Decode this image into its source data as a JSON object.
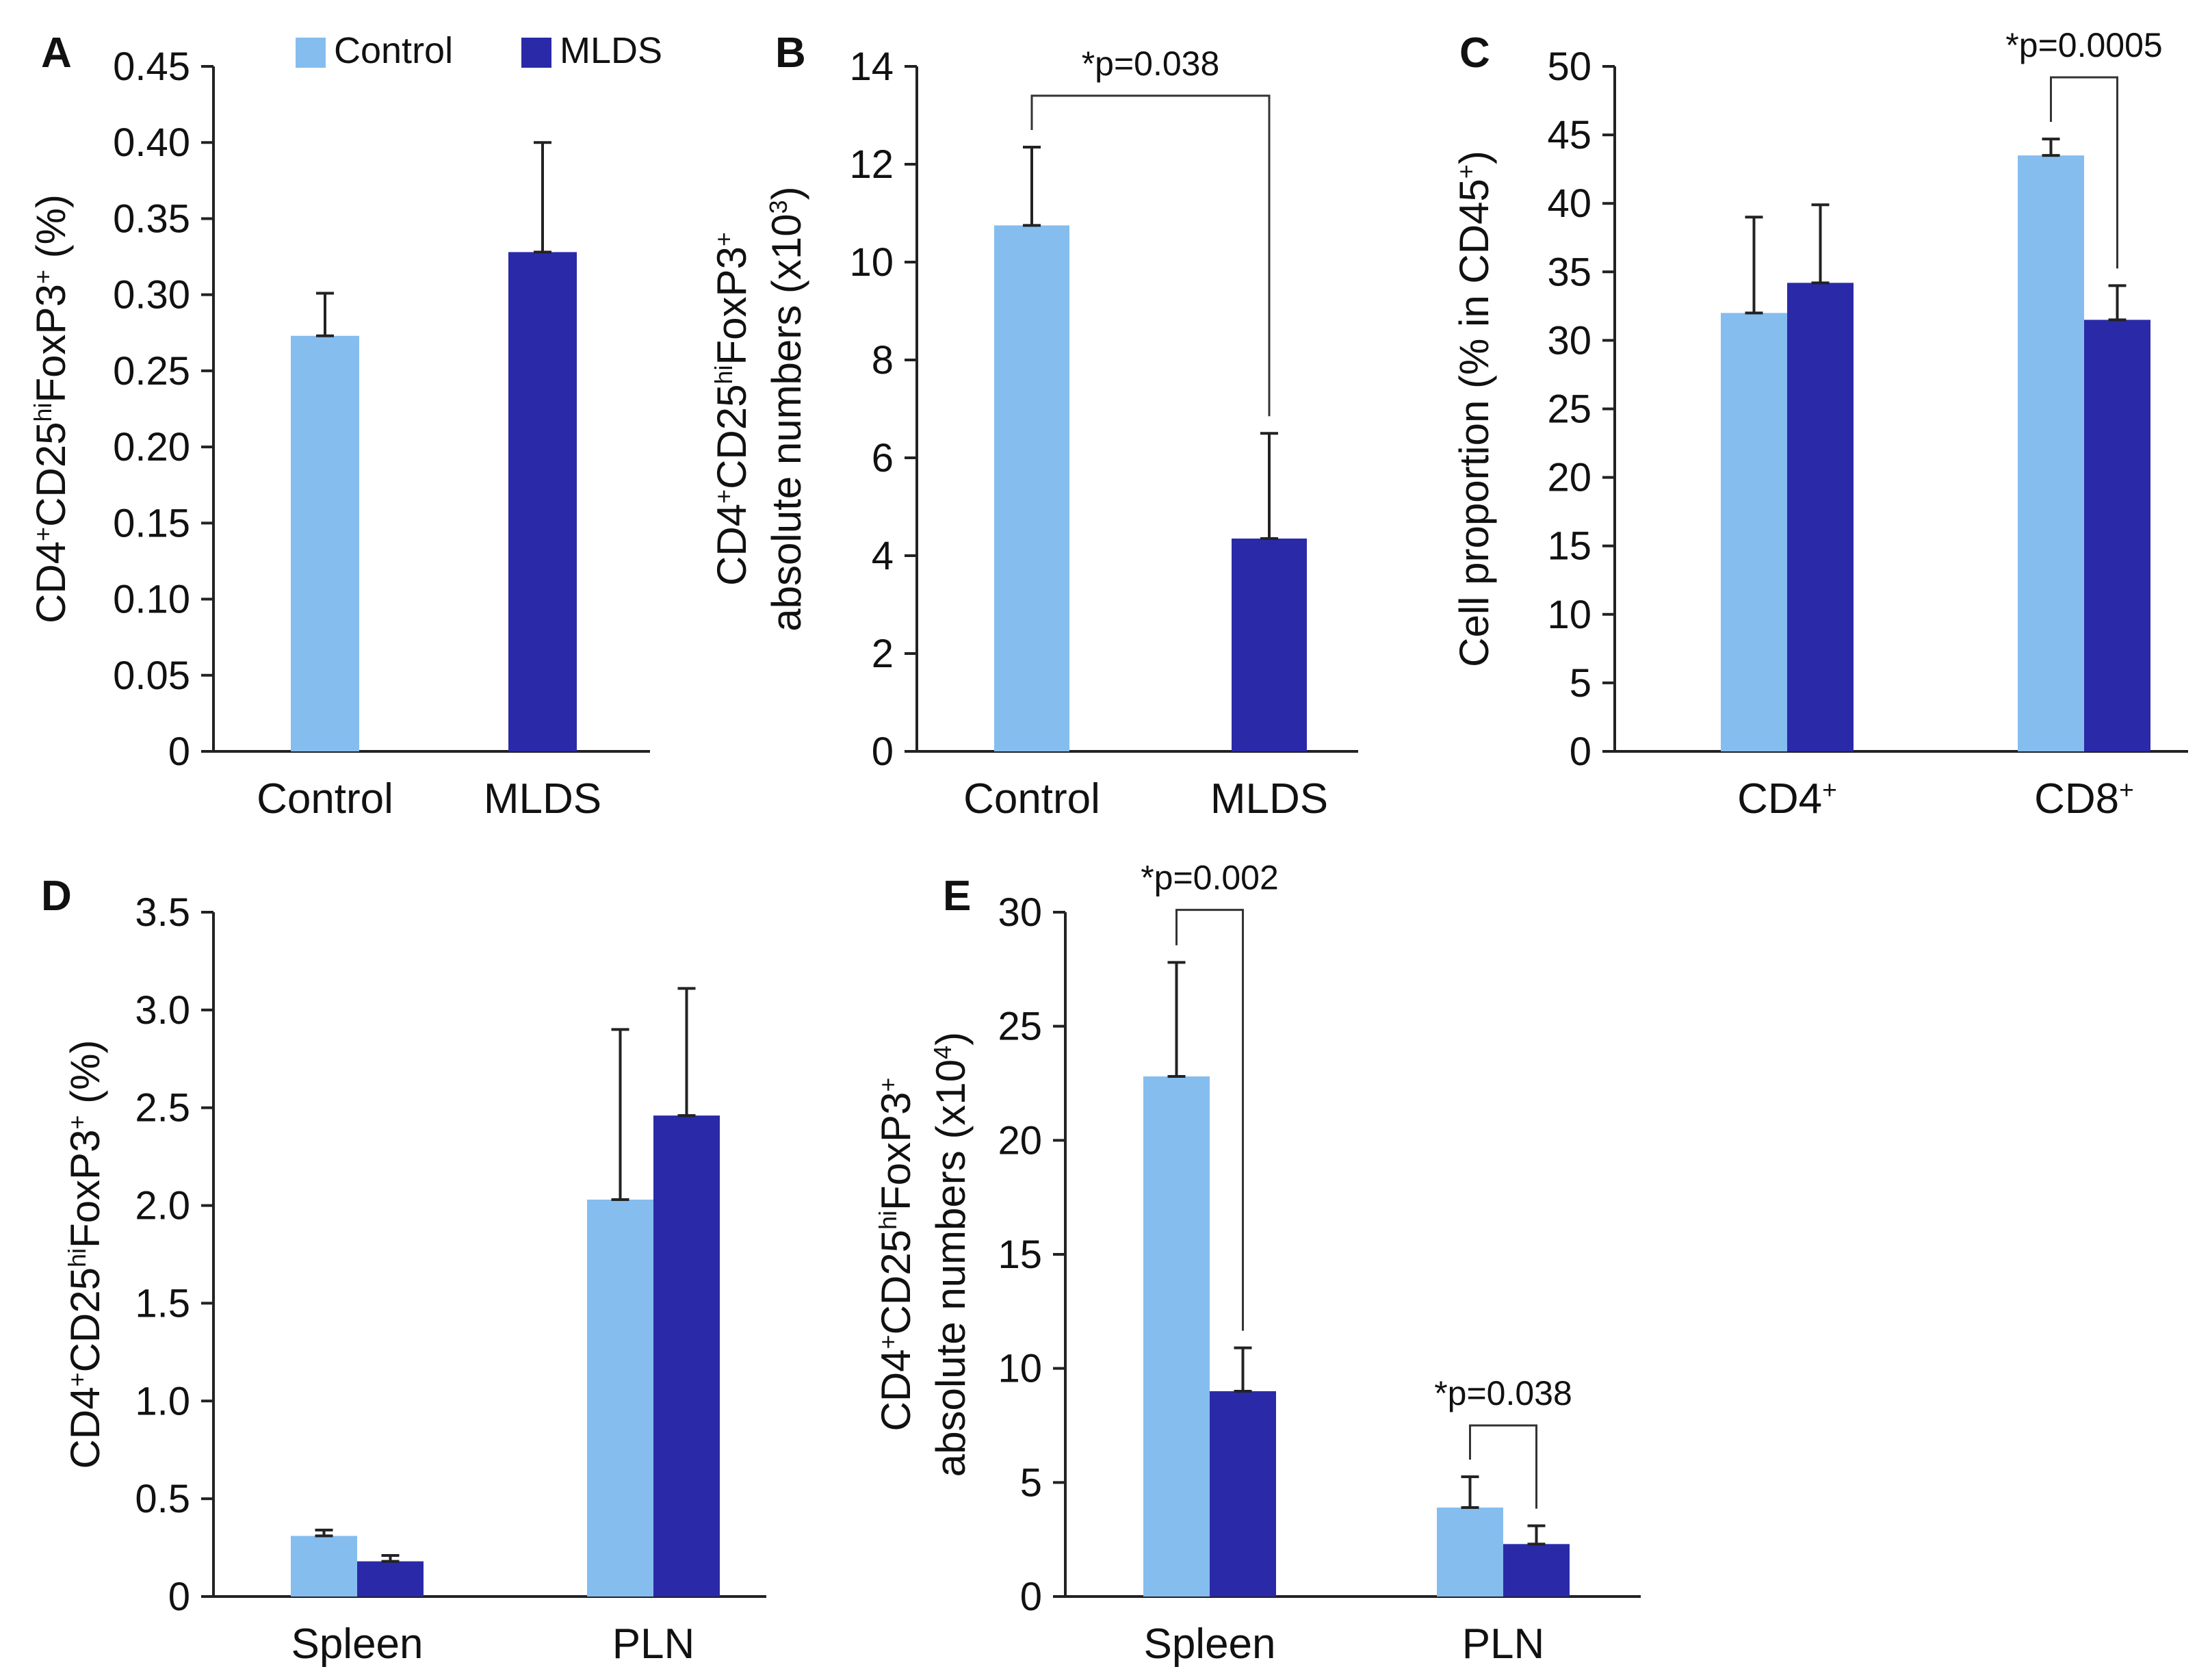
{
  "figure": {
    "legend": {
      "items": [
        {
          "label": "Control",
          "color": "#85bdef"
        },
        {
          "label": "MLDS",
          "color": "#2a2aa8"
        }
      ]
    }
  },
  "chart_data": [
    {
      "panel": "A",
      "type": "bar",
      "categories": [
        "Control",
        "MLDS"
      ],
      "series": [
        {
          "name": "Control",
          "color": "#85bdef",
          "values": [
            0.273,
            null
          ],
          "errors": [
            0.028,
            null
          ]
        },
        {
          "name": "MLDS",
          "color": "#2a2aa8",
          "values": [
            null,
            0.328
          ],
          "errors": [
            null,
            0.072
          ]
        }
      ],
      "ylabel": {
        "main": "CD4",
        "parts": [
          [
            "CD4",
            "+"
          ],
          [
            "CD25",
            "hi"
          ],
          [
            "FoxP3",
            "+"
          ]
        ],
        "suffix": " (%)"
      },
      "ylabel_lines": [
        [
          [
            "CD4",
            "+"
          ],
          [
            "CD25",
            "hi"
          ],
          [
            "FoxP3",
            "+"
          ],
          [
            " (%)",
            ""
          ]
        ]
      ],
      "ylim": [
        0,
        0.45
      ],
      "yticks": [
        "0",
        "0.05",
        "0.10",
        "0.15",
        "0.20",
        "0.25",
        "0.30",
        "0.35",
        "0.40",
        "0.45"
      ],
      "significance": []
    },
    {
      "panel": "B",
      "type": "bar",
      "categories": [
        "Control",
        "MLDS"
      ],
      "series": [
        {
          "name": "Control",
          "color": "#85bdef",
          "values": [
            10.75,
            null
          ],
          "errors": [
            1.6,
            null
          ]
        },
        {
          "name": "MLDS",
          "color": "#2a2aa8",
          "values": [
            null,
            4.35
          ],
          "errors": [
            null,
            2.15
          ]
        }
      ],
      "ylabel_lines": [
        [
          [
            "CD4",
            "+"
          ],
          [
            "CD25",
            "hi"
          ],
          [
            "FoxP3",
            "+"
          ]
        ],
        [
          [
            "absolute numbers (x10",
            "3"
          ],
          [
            ")",
            ""
          ]
        ]
      ],
      "ylim": [
        0,
        14
      ],
      "yticks": [
        "0",
        "2",
        "4",
        "6",
        "8",
        "10",
        "12",
        "14"
      ],
      "significance": [
        {
          "label": "*p=0.038",
          "from_bar": 0,
          "to_bar": 1,
          "y": 13.4
        }
      ]
    },
    {
      "panel": "C",
      "type": "bar",
      "categories": [
        "CD4+",
        "CD8+"
      ],
      "category_labels": [
        [
          "CD4",
          "+"
        ],
        [
          "CD8",
          "+"
        ]
      ],
      "series": [
        {
          "name": "Control",
          "color": "#85bdef",
          "values": [
            32.0,
            43.5
          ],
          "errors": [
            7.0,
            1.2
          ]
        },
        {
          "name": "MLDS",
          "color": "#2a2aa8",
          "values": [
            34.2,
            31.5
          ],
          "errors": [
            5.7,
            2.5
          ]
        }
      ],
      "ylabel_lines": [
        [
          [
            "Cell proportion (% in CD45",
            "+"
          ],
          [
            ")",
            ""
          ]
        ]
      ],
      "ylim": [
        0,
        50
      ],
      "yticks": [
        "0",
        "5",
        "10",
        "15",
        "20",
        "25",
        "30",
        "35",
        "40",
        "45",
        "50"
      ],
      "significance": [
        {
          "label": "*p=0.0005",
          "category": 1,
          "y": 49.2
        }
      ]
    },
    {
      "panel": "D",
      "type": "bar",
      "categories": [
        "Spleen",
        "PLN"
      ],
      "series": [
        {
          "name": "Control",
          "color": "#85bdef",
          "values": [
            0.31,
            2.03
          ],
          "errors": [
            0.03,
            0.87
          ]
        },
        {
          "name": "MLDS",
          "color": "#2a2aa8",
          "values": [
            0.18,
            2.46
          ],
          "errors": [
            0.03,
            0.65
          ]
        }
      ],
      "ylabel_lines": [
        [
          [
            "CD4",
            "+"
          ],
          [
            "CD25",
            "hi"
          ],
          [
            "FoxP3",
            "+"
          ],
          [
            " (%)",
            ""
          ]
        ]
      ],
      "ylim": [
        0,
        3.5
      ],
      "yticks": [
        "0",
        "0.5",
        "1.0",
        "1.5",
        "2.0",
        "2.5",
        "3.0",
        "3.5"
      ],
      "significance": []
    },
    {
      "panel": "E",
      "type": "bar",
      "categories": [
        "Spleen",
        "PLN"
      ],
      "series": [
        {
          "name": "Control",
          "color": "#85bdef",
          "values": [
            22.8,
            3.9
          ],
          "errors": [
            5.0,
            1.35
          ]
        },
        {
          "name": "MLDS",
          "color": "#2a2aa8",
          "values": [
            9.0,
            2.3
          ],
          "errors": [
            1.9,
            0.8
          ]
        }
      ],
      "ylabel_lines": [
        [
          [
            "CD4",
            "+"
          ],
          [
            "CD25",
            "hi"
          ],
          [
            "FoxP3",
            "+"
          ]
        ],
        [
          [
            "absolute numbers (x10",
            "4"
          ],
          [
            ")",
            ""
          ]
        ]
      ],
      "ylim": [
        0,
        30
      ],
      "yticks": [
        "0",
        "5",
        "10",
        "15",
        "20",
        "25",
        "30"
      ],
      "significance": [
        {
          "label": "*p=0.002",
          "category": 0,
          "y": 30.1
        },
        {
          "label": "*p=0.038",
          "category": 1,
          "y": 7.5
        }
      ]
    }
  ]
}
